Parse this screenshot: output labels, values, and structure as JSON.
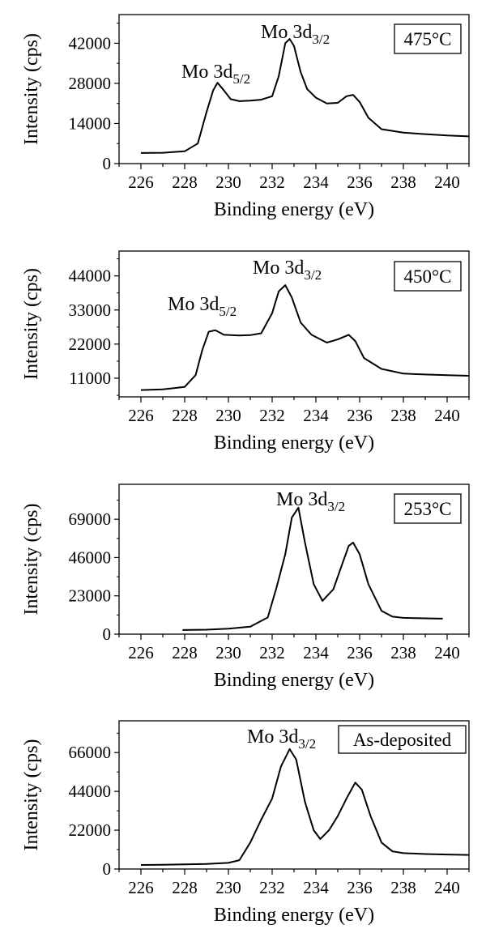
{
  "chart_data": [
    {
      "type": "line",
      "xlabel": "Binding energy (eV)",
      "ylabel": "Intensity (cps)",
      "xlim": [
        225,
        241
      ],
      "ylim": [
        0,
        52000
      ],
      "x_ticks": [
        226,
        228,
        230,
        232,
        234,
        236,
        238,
        240
      ],
      "y_ticks": [
        0,
        14000,
        28000,
        42000
      ],
      "legend": "475°C",
      "peak_labels": [
        {
          "base": "Mo 3d",
          "sub": "5/2"
        },
        {
          "base": "Mo 3d",
          "sub": "3/2"
        }
      ],
      "series": [
        {
          "x": [
            226.0,
            227.0,
            228.0,
            228.6,
            229.0,
            229.3,
            229.5,
            229.8,
            230.1,
            230.5,
            231.0,
            231.5,
            232.0,
            232.3,
            232.6,
            232.8,
            233.0,
            233.3,
            233.6,
            234.0,
            234.5,
            235.0,
            235.4,
            235.7,
            236.0,
            236.4,
            237.0,
            238.0,
            239.0,
            240.0,
            241.0
          ],
          "y": [
            3700,
            3800,
            4300,
            7000,
            18000,
            25500,
            28200,
            25500,
            22500,
            21800,
            22000,
            22300,
            23500,
            30500,
            42000,
            43500,
            41000,
            32000,
            26000,
            23000,
            21000,
            21200,
            23500,
            24000,
            21500,
            16000,
            12000,
            10800,
            10300,
            9800,
            9500
          ]
        }
      ]
    },
    {
      "type": "line",
      "xlabel": "Binding energy (eV)",
      "ylabel": "Intensity (cps)",
      "xlim": [
        225,
        241
      ],
      "ylim": [
        5000,
        52000
      ],
      "x_ticks": [
        226,
        228,
        230,
        232,
        234,
        236,
        238,
        240
      ],
      "y_ticks": [
        11000,
        22000,
        33000,
        44000
      ],
      "legend": "450°C",
      "peak_labels": [
        {
          "base": "Mo 3d",
          "sub": "5/2"
        },
        {
          "base": "Mo 3d",
          "sub": "3/2"
        }
      ],
      "series": [
        {
          "x": [
            226.0,
            227.0,
            228.0,
            228.5,
            228.8,
            229.1,
            229.4,
            229.8,
            230.5,
            231.0,
            231.5,
            232.0,
            232.3,
            232.6,
            232.9,
            233.3,
            233.8,
            234.5,
            235.0,
            235.5,
            235.8,
            236.2,
            237.0,
            238.0,
            239.0,
            240.0,
            241.0
          ],
          "y": [
            7200,
            7400,
            8200,
            12000,
            20000,
            26000,
            26500,
            25000,
            24800,
            24900,
            25500,
            32000,
            39000,
            41000,
            37000,
            29000,
            25000,
            22500,
            23500,
            25000,
            23000,
            17500,
            14000,
            12500,
            12200,
            12000,
            11800
          ]
        }
      ]
    },
    {
      "type": "line",
      "xlabel": "Binding energy (eV)",
      "ylabel": "Intensity (cps)",
      "xlim": [
        225,
        241
      ],
      "ylim": [
        0,
        90000
      ],
      "x_ticks": [
        226,
        228,
        230,
        232,
        234,
        236,
        238,
        240
      ],
      "y_ticks": [
        0,
        23000,
        46000,
        69000
      ],
      "legend": "253°C",
      "peak_labels": [
        {
          "base": "Mo 3d",
          "sub": "3/2"
        }
      ],
      "series": [
        {
          "x": [
            227.9,
            229.0,
            230.0,
            231.0,
            231.8,
            232.2,
            232.6,
            232.9,
            233.2,
            233.5,
            233.9,
            234.3,
            234.8,
            235.2,
            235.5,
            235.7,
            236.0,
            236.4,
            237.0,
            237.5,
            238.0,
            239.0,
            239.8
          ],
          "y": [
            2500,
            2700,
            3300,
            4500,
            10000,
            28000,
            48000,
            70000,
            76000,
            55000,
            30000,
            20000,
            27000,
            42000,
            53000,
            55000,
            48000,
            30000,
            14000,
            10500,
            9800,
            9500,
            9300
          ]
        }
      ]
    },
    {
      "type": "line",
      "xlabel": "Binding energy (eV)",
      "ylabel": "Intensity (cps)",
      "xlim": [
        225,
        241
      ],
      "ylim": [
        0,
        84000
      ],
      "x_ticks": [
        226,
        228,
        230,
        232,
        234,
        236,
        238,
        240
      ],
      "y_ticks": [
        0,
        22000,
        44000,
        66000
      ],
      "legend": "As-deposited",
      "peak_labels": [
        {
          "base": "Mo 3d",
          "sub": "3/2"
        }
      ],
      "series": [
        {
          "x": [
            226.0,
            227.0,
            228.0,
            229.0,
            230.0,
            230.5,
            231.0,
            231.5,
            232.0,
            232.4,
            232.8,
            233.1,
            233.5,
            233.9,
            234.2,
            234.6,
            235.0,
            235.4,
            235.8,
            236.1,
            236.5,
            237.0,
            237.5,
            238.0,
            239.0,
            240.0,
            241.0
          ],
          "y": [
            2300,
            2400,
            2600,
            2900,
            3500,
            5000,
            15000,
            28000,
            40000,
            58000,
            68000,
            62000,
            38000,
            22000,
            17000,
            22000,
            30000,
            40000,
            49000,
            45000,
            30000,
            15000,
            10000,
            9000,
            8500,
            8200,
            8000
          ]
        }
      ]
    }
  ]
}
